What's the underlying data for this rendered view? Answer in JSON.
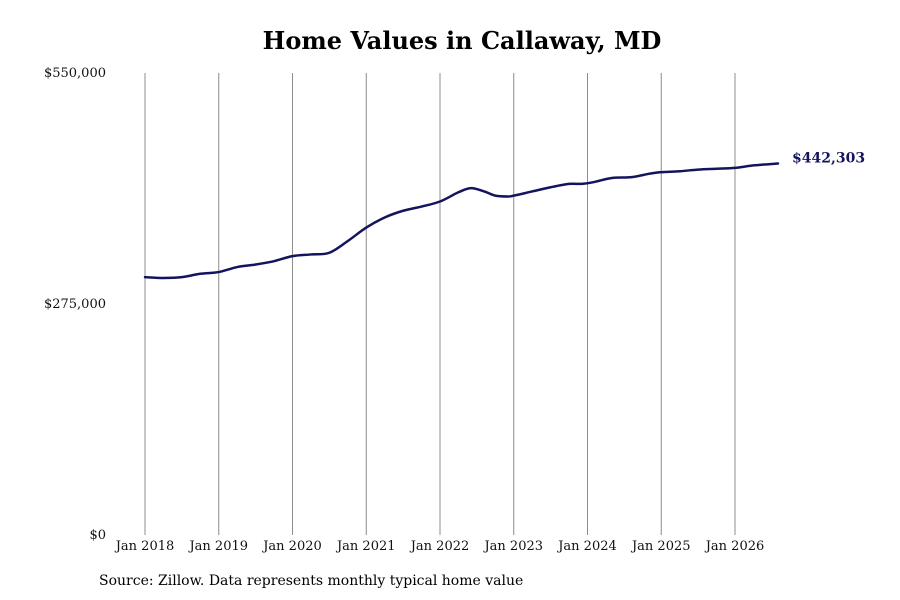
{
  "chart_data": {
    "type": "line",
    "title": "Home Values in Callaway, MD",
    "xlabel": "",
    "ylabel": "",
    "ylim": [
      0,
      550000
    ],
    "y_ticks": [
      {
        "value": 0,
        "label": "$0"
      },
      {
        "value": 275000,
        "label": "$275,000"
      },
      {
        "value": 550000,
        "label": "$550,000"
      }
    ],
    "x_ticks": [
      {
        "value": 2018.0,
        "label": "Jan 2018"
      },
      {
        "value": 2019.0,
        "label": "Jan 2019"
      },
      {
        "value": 2020.0,
        "label": "Jan 2020"
      },
      {
        "value": 2021.0,
        "label": "Jan 2021"
      },
      {
        "value": 2022.0,
        "label": "Jan 2022"
      },
      {
        "value": 2023.0,
        "label": "Jan 2023"
      },
      {
        "value": 2024.0,
        "label": "Jan 2024"
      },
      {
        "value": 2025.0,
        "label": "Jan 2025"
      },
      {
        "value": 2026.0,
        "label": "Jan 2026"
      }
    ],
    "xlim": [
      2018.0,
      2026.583
    ],
    "grid": "vertical",
    "line_color": "#14145e",
    "gridline_color": "#8c8c8c",
    "series": [
      {
        "name": "",
        "x": [
          2018.0,
          2018.25,
          2018.5,
          2018.75,
          2019.0,
          2019.25,
          2019.5,
          2019.75,
          2020.0,
          2020.25,
          2020.5,
          2020.75,
          2021.0,
          2021.25,
          2021.5,
          2021.75,
          2022.0,
          2022.25,
          2022.42,
          2022.6,
          2022.75,
          2022.92,
          2023.0,
          2023.25,
          2023.5,
          2023.75,
          2023.92,
          2024.08,
          2024.33,
          2024.6,
          2024.83,
          2025.0,
          2025.25,
          2025.5,
          2025.75,
          2026.0,
          2026.25,
          2026.583
        ],
        "y": [
          307000,
          306000,
          307000,
          311000,
          313000,
          319000,
          322000,
          326000,
          332000,
          334000,
          336000,
          350000,
          366000,
          378000,
          386000,
          391000,
          397000,
          408000,
          413000,
          409000,
          404000,
          403000,
          404000,
          409000,
          414000,
          418000,
          418000,
          420000,
          425000,
          426000,
          430000,
          432000,
          433000,
          435000,
          436000,
          437000,
          440000,
          442303
        ]
      }
    ],
    "end_value_label": "$442,303",
    "source": "Source: Zillow. Data represents monthly typical home value"
  }
}
